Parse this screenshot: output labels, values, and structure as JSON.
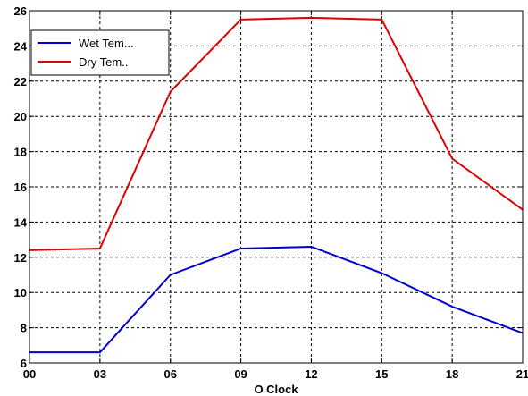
{
  "chart_data": {
    "type": "line",
    "xlabel": "O Clock",
    "ylabel": "",
    "title": "",
    "categories": [
      "00",
      "03",
      "06",
      "09",
      "12",
      "15",
      "18",
      "21"
    ],
    "ylim": [
      6,
      26
    ],
    "yticks": [
      6,
      8,
      10,
      12,
      14,
      16,
      18,
      20,
      22,
      24,
      26
    ],
    "grid": true,
    "legend_position": "top-left",
    "series": [
      {
        "name": "Wet Tem...",
        "color": "#0000cc",
        "values": [
          6.6,
          6.6,
          11.0,
          12.5,
          12.6,
          11.1,
          9.2,
          7.7
        ]
      },
      {
        "name": "Dry Tem..",
        "color": "#e00000",
        "values": [
          12.4,
          12.5,
          21.4,
          25.5,
          25.6,
          25.5,
          17.6,
          14.7
        ]
      }
    ]
  }
}
